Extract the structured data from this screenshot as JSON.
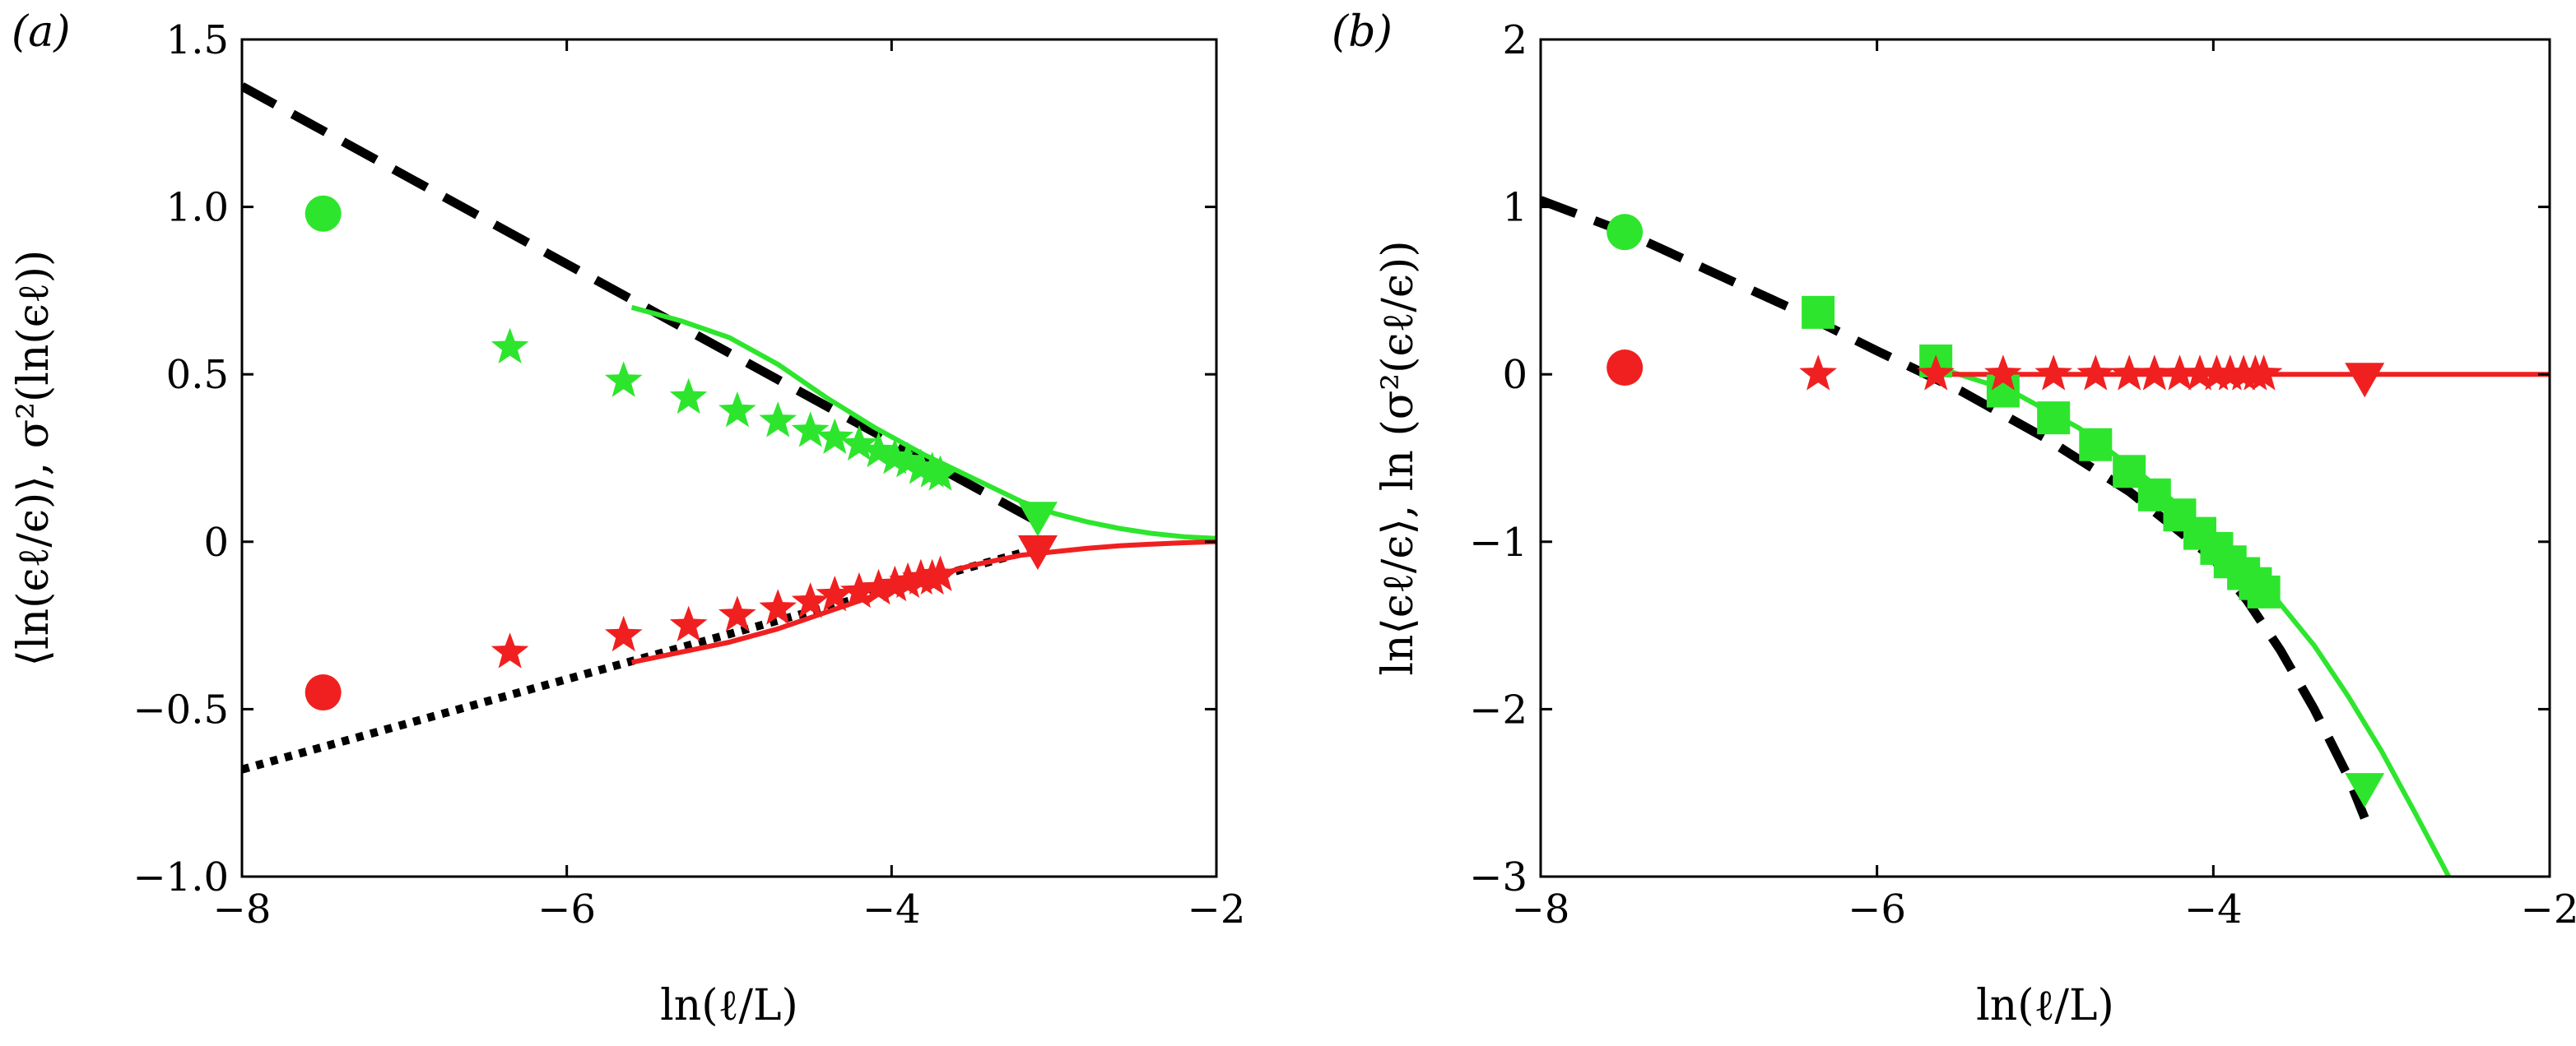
{
  "chart_data": [
    {
      "type": "line",
      "panel_label": "(a)",
      "xlabel": "ln(ℓ/L)",
      "ylabel": "⟨ln(ϵℓ/ϵ)⟩, σ²(ln(ϵℓ))",
      "xlim": [
        -8,
        -2
      ],
      "ylim": [
        -1.0,
        1.5
      ],
      "x_ticks": [
        -8,
        -6,
        -4,
        -2
      ],
      "x_tick_labels": [
        "−8",
        "−6",
        "−4",
        "−2"
      ],
      "y_ticks": [
        -1.0,
        -0.5,
        0,
        0.5,
        1.0,
        1.5
      ],
      "y_tick_labels": [
        "−1.0",
        "−0.5",
        "0",
        "0.5",
        "1.0",
        "1.5"
      ],
      "grid": false,
      "colors": {
        "green": "#2ee52e",
        "red": "#f02020",
        "black": "#000000"
      },
      "series": [
        {
          "kind": "dashed-line",
          "color": "black",
          "x": [
            -8,
            -3.1
          ],
          "y": [
            1.36,
            0.06
          ]
        },
        {
          "kind": "dotted-line",
          "color": "black",
          "x": [
            -8,
            -3.1
          ],
          "y": [
            -0.68,
            -0.02
          ]
        },
        {
          "kind": "solid-line",
          "color": "green",
          "x": [
            -5.6,
            -5.3,
            -5.0,
            -4.7,
            -4.4,
            -4.1,
            -3.8,
            -3.5,
            -3.2,
            -3.0,
            -2.8,
            -2.6,
            -2.4,
            -2.2,
            -2.0
          ],
          "y": [
            0.7,
            0.66,
            0.61,
            0.53,
            0.43,
            0.34,
            0.26,
            0.19,
            0.12,
            0.085,
            0.06,
            0.04,
            0.025,
            0.015,
            0.01
          ]
        },
        {
          "kind": "solid-line",
          "color": "red",
          "x": [
            -5.6,
            -5.3,
            -5.0,
            -4.7,
            -4.4,
            -4.1,
            -3.8,
            -3.5,
            -3.2,
            -3.0,
            -2.8,
            -2.6,
            -2.4,
            -2.2,
            -2.0
          ],
          "y": [
            -0.36,
            -0.33,
            -0.3,
            -0.26,
            -0.21,
            -0.16,
            -0.11,
            -0.07,
            -0.04,
            -0.03,
            -0.02,
            -0.012,
            -0.007,
            -0.003,
            0.0
          ]
        },
        {
          "kind": "circle",
          "color": "green",
          "x": [
            -7.5
          ],
          "y": [
            0.98
          ]
        },
        {
          "kind": "circle",
          "color": "red",
          "x": [
            -7.5
          ],
          "y": [
            -0.45
          ]
        },
        {
          "kind": "star",
          "color": "green",
          "x": [
            -6.35,
            -5.65,
            -5.25,
            -4.95,
            -4.7,
            -4.5,
            -4.35,
            -4.2,
            -4.08,
            -3.98,
            -3.9,
            -3.82,
            -3.75,
            -3.7
          ],
          "y": [
            0.58,
            0.48,
            0.43,
            0.39,
            0.36,
            0.33,
            0.31,
            0.29,
            0.27,
            0.25,
            0.24,
            0.22,
            0.21,
            0.2
          ]
        },
        {
          "kind": "star",
          "color": "red",
          "x": [
            -6.35,
            -5.65,
            -5.25,
            -4.95,
            -4.7,
            -4.5,
            -4.35,
            -4.2,
            -4.08,
            -3.98,
            -3.9,
            -3.82,
            -3.75,
            -3.7
          ],
          "y": [
            -0.33,
            -0.28,
            -0.25,
            -0.22,
            -0.2,
            -0.18,
            -0.16,
            -0.15,
            -0.14,
            -0.13,
            -0.12,
            -0.11,
            -0.11,
            -0.1
          ]
        },
        {
          "kind": "triangle-down",
          "color": "green",
          "x": [
            -3.1
          ],
          "y": [
            0.07
          ]
        },
        {
          "kind": "triangle-down",
          "color": "red",
          "x": [
            -3.1
          ],
          "y": [
            -0.03
          ]
        }
      ]
    },
    {
      "type": "line",
      "panel_label": "(b)",
      "xlabel": "ln(ℓ/L)",
      "ylabel": "ln⟨ϵℓ/ϵ⟩, ln (σ²(ϵℓ/ϵ))",
      "xlim": [
        -8,
        -2
      ],
      "ylim": [
        -3,
        2
      ],
      "x_ticks": [
        -8,
        -6,
        -4,
        -2
      ],
      "x_tick_labels": [
        "−8",
        "−6",
        "−4",
        "−2"
      ],
      "y_ticks": [
        -3,
        -2,
        -1,
        0,
        1,
        2
      ],
      "y_tick_labels": [
        "−3",
        "−2",
        "−1",
        "0",
        "1",
        "2"
      ],
      "grid": false,
      "colors": {
        "green": "#2ee52e",
        "red": "#f02020",
        "black": "#000000"
      },
      "series": [
        {
          "kind": "dashed-line",
          "color": "black",
          "x": [
            -8.0,
            -7.5,
            -7.0,
            -6.5,
            -6.0,
            -5.5,
            -5.0,
            -4.5,
            -4.0,
            -3.8,
            -3.6,
            -3.4,
            -3.2,
            -3.1
          ],
          "y": [
            1.04,
            0.85,
            0.62,
            0.39,
            0.14,
            -0.1,
            -0.38,
            -0.7,
            -1.1,
            -1.35,
            -1.65,
            -2.0,
            -2.4,
            -2.65
          ]
        },
        {
          "kind": "solid-line",
          "color": "green",
          "x": [
            -5.7,
            -5.2,
            -4.8,
            -4.4,
            -4.0,
            -3.7,
            -3.4,
            -3.2,
            -3.0,
            -2.8,
            -2.6
          ],
          "y": [
            0.06,
            -0.1,
            -0.32,
            -0.62,
            -0.96,
            -1.25,
            -1.62,
            -1.92,
            -2.25,
            -2.62,
            -3.0
          ]
        },
        {
          "kind": "solid-line",
          "color": "red",
          "x": [
            -5.7,
            -2.0
          ],
          "y": [
            0.0,
            0.0
          ]
        },
        {
          "kind": "circle",
          "color": "green",
          "x": [
            -7.5
          ],
          "y": [
            0.85
          ]
        },
        {
          "kind": "circle",
          "color": "red",
          "x": [
            -7.5
          ],
          "y": [
            0.04
          ]
        },
        {
          "kind": "square",
          "color": "green",
          "x": [
            -6.35,
            -5.65,
            -5.25,
            -4.95,
            -4.7,
            -4.5,
            -4.35,
            -4.2,
            -4.08,
            -3.98,
            -3.9,
            -3.82,
            -3.75,
            -3.7
          ],
          "y": [
            0.37,
            0.08,
            -0.1,
            -0.26,
            -0.42,
            -0.58,
            -0.72,
            -0.84,
            -0.95,
            -1.04,
            -1.12,
            -1.19,
            -1.25,
            -1.3
          ]
        },
        {
          "kind": "star",
          "color": "red",
          "x": [
            -6.35,
            -5.65,
            -5.25,
            -4.95,
            -4.7,
            -4.5,
            -4.35,
            -4.2,
            -4.08,
            -3.98,
            -3.9,
            -3.82,
            -3.75,
            -3.7
          ],
          "y": [
            0.0,
            0.0,
            0.0,
            0.0,
            0.0,
            0.0,
            0.0,
            0.0,
            0.0,
            0.0,
            0.0,
            0.0,
            0.0,
            0.0
          ]
        },
        {
          "kind": "triangle-down",
          "color": "green",
          "x": [
            -3.1
          ],
          "y": [
            -2.48
          ]
        },
        {
          "kind": "triangle-down",
          "color": "red",
          "x": [
            -3.1
          ],
          "y": [
            -0.03
          ]
        }
      ]
    }
  ]
}
